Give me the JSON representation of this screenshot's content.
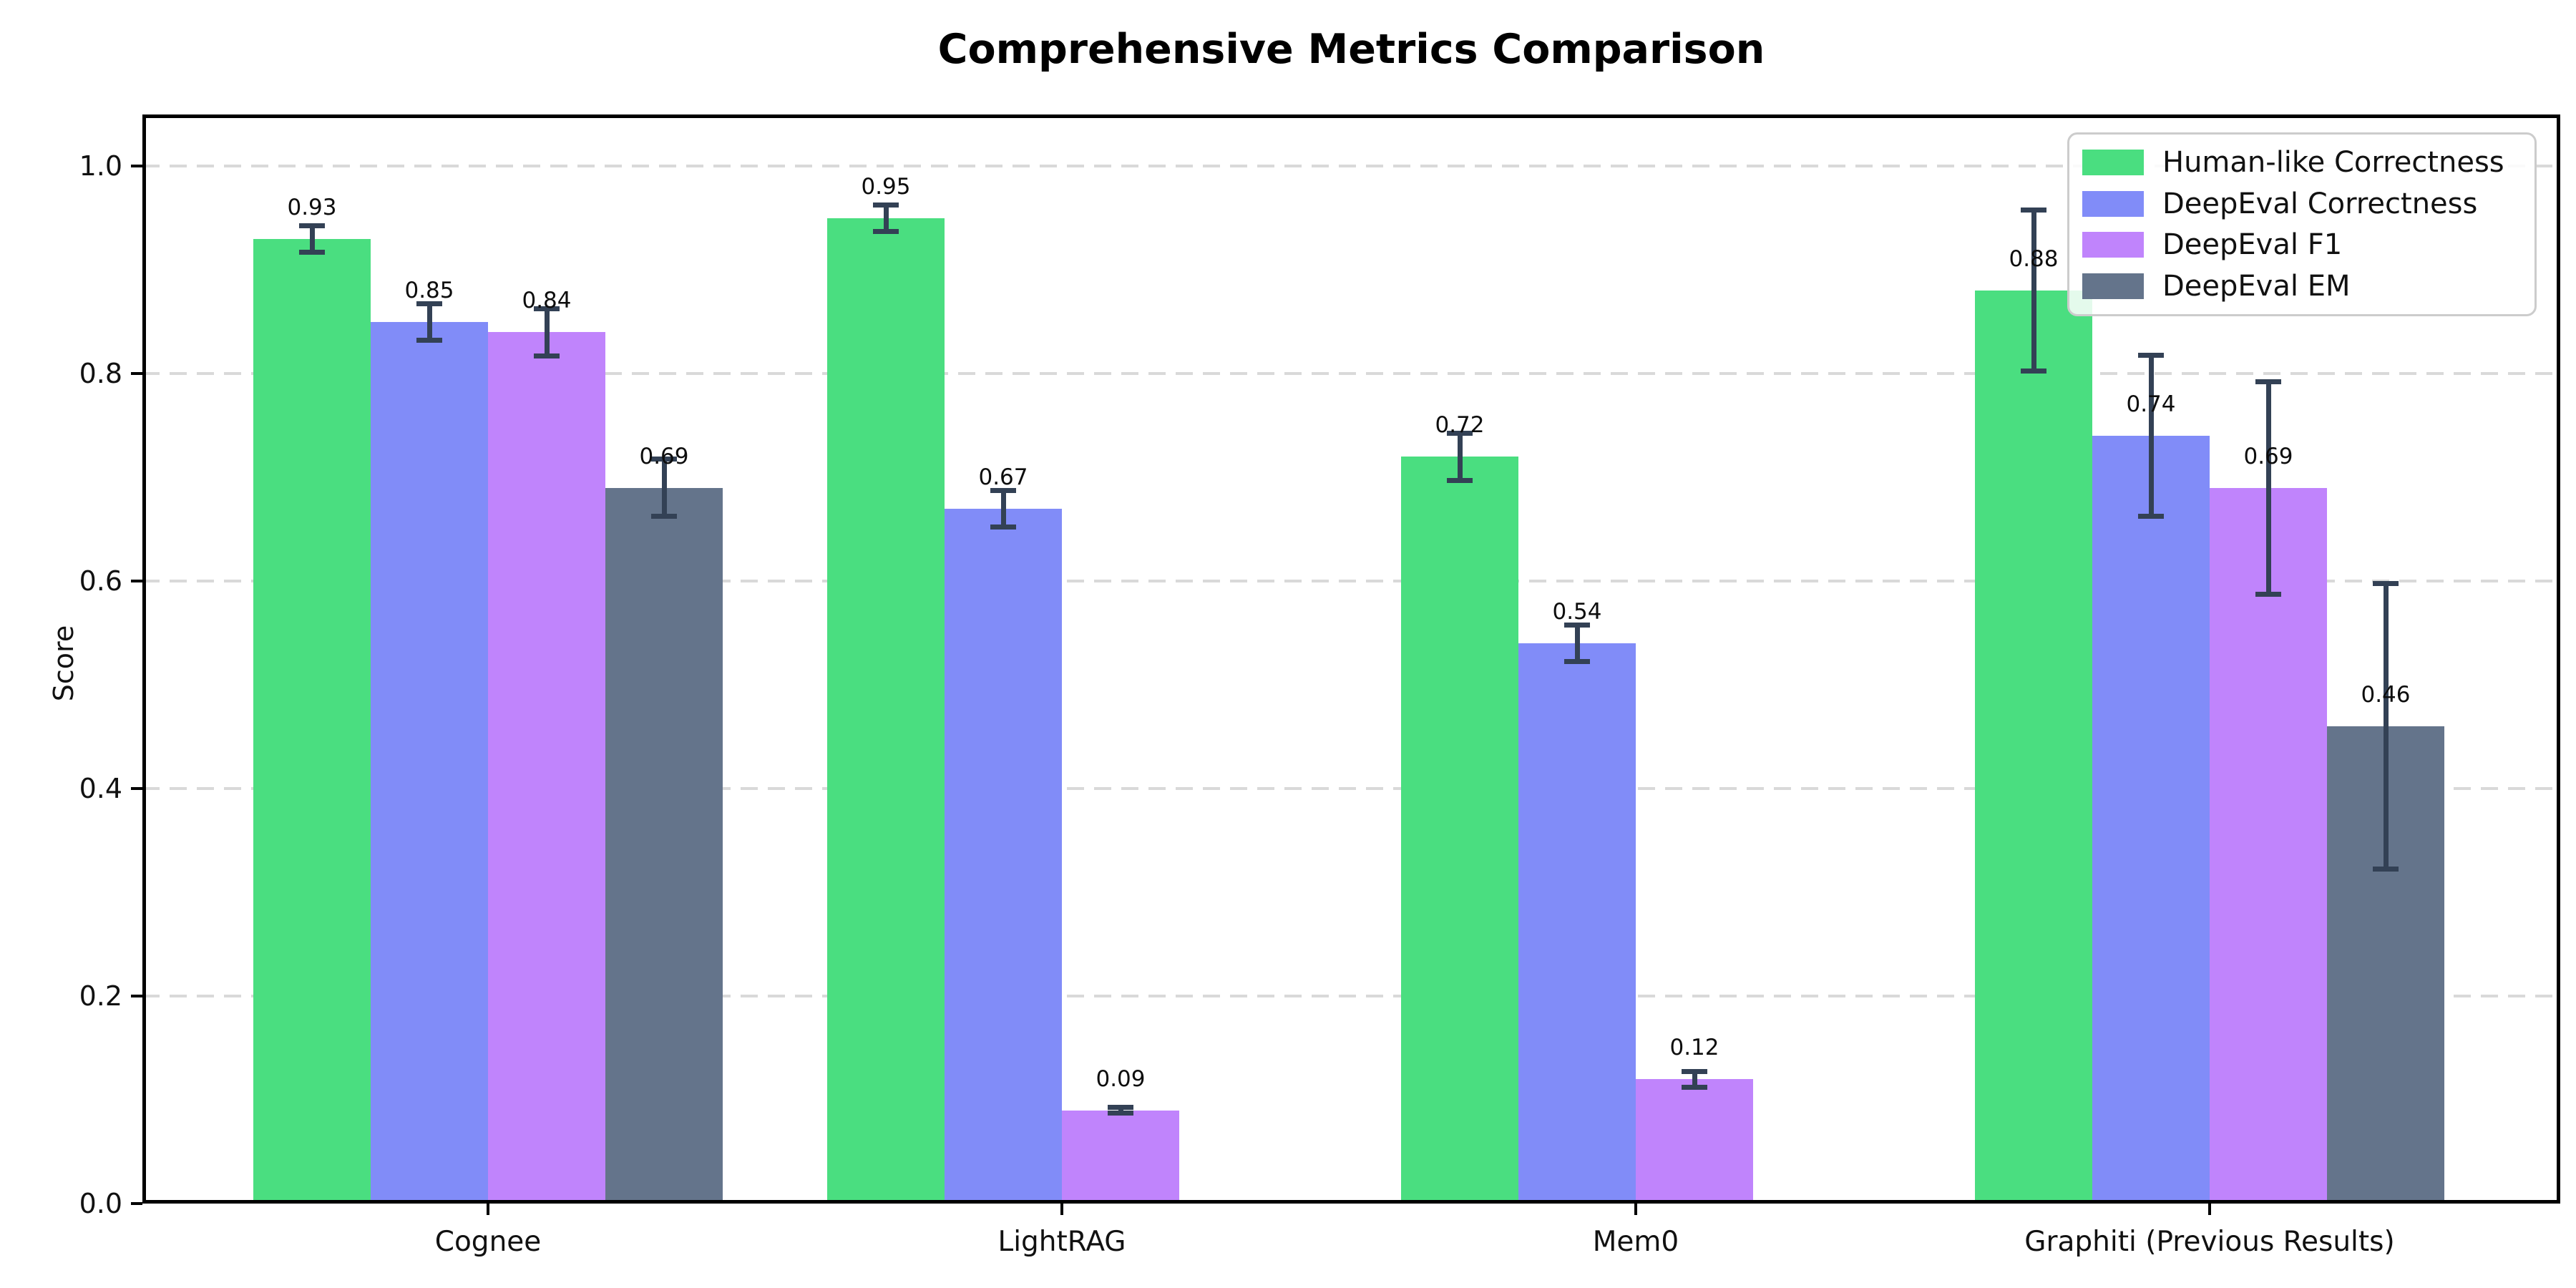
{
  "title": "Comprehensive Metrics Comparison",
  "ylabel": "Score",
  "chart_data": {
    "type": "bar",
    "title": "Comprehensive Metrics Comparison",
    "xlabel": "",
    "ylabel": "Score",
    "ylim": [
      0,
      1.05
    ],
    "yticks": [
      "0.0",
      "0.2",
      "0.4",
      "0.6",
      "0.8",
      "1.0"
    ],
    "grid": "horizontal dashed at y ticks",
    "legend_position": "upper right",
    "categories": [
      "Cognee",
      "LightRAG",
      "Mem0",
      "Graphiti (Previous Results)"
    ],
    "series": [
      {
        "name": "Human-like Correctness",
        "color": "#4ade80",
        "values": [
          0.93,
          0.95,
          0.72,
          0.88
        ],
        "errors": [
          0.015,
          0.015,
          0.025,
          0.08
        ],
        "labels": [
          "0.93",
          "0.95",
          "0.72",
          "0.88"
        ]
      },
      {
        "name": "DeepEval Correctness",
        "color": "#818cf8",
        "values": [
          0.85,
          0.67,
          0.54,
          0.74
        ],
        "errors": [
          0.02,
          0.02,
          0.02,
          0.08
        ],
        "labels": [
          "0.85",
          "0.67",
          "0.54",
          "0.74"
        ]
      },
      {
        "name": "DeepEval F1",
        "color": "#c084fc",
        "values": [
          0.84,
          0.09,
          0.12,
          0.69
        ],
        "errors": [
          0.025,
          0.005,
          0.01,
          0.105
        ],
        "labels": [
          "0.84",
          "0.09",
          "0.12",
          "0.69"
        ]
      },
      {
        "name": "DeepEval EM",
        "color": "#64748b",
        "values": [
          0.69,
          0.0,
          0.0,
          0.46
        ],
        "errors": [
          0.03,
          0.003,
          0.003,
          0.14
        ],
        "labels": [
          "0.69",
          "",
          "",
          "0.46"
        ]
      }
    ],
    "error_bar_color": "#334155",
    "value_label_color": "#0d0d0d",
    "background_color": "#ffffff"
  }
}
